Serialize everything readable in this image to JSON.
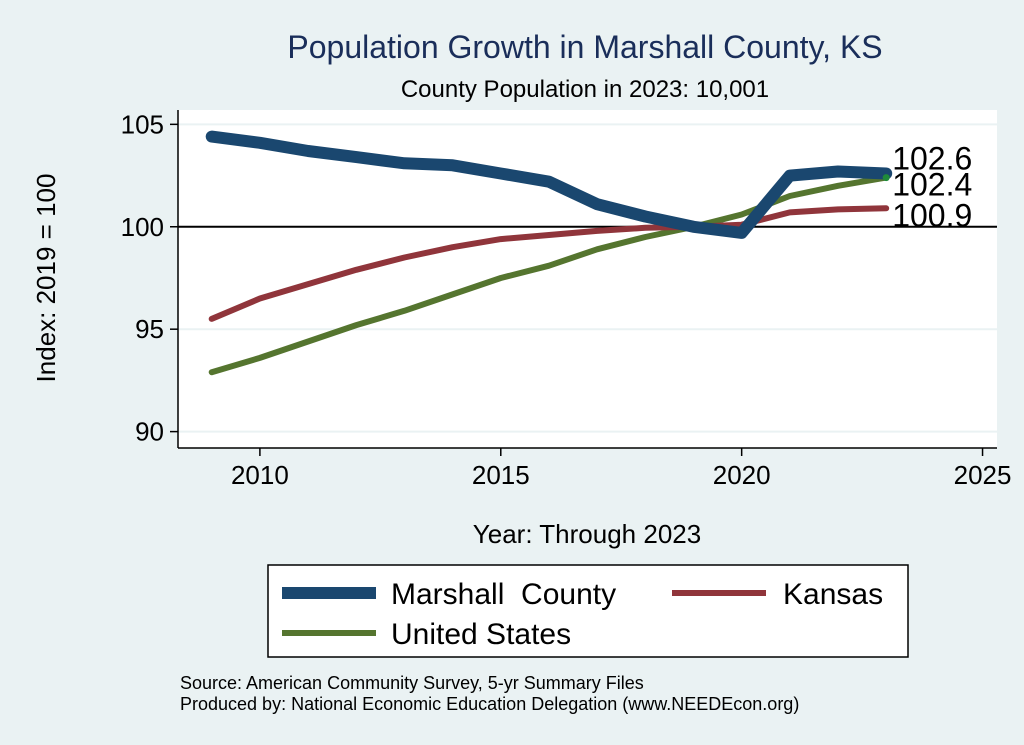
{
  "chart_data": {
    "type": "line",
    "title": "Population Growth in Marshall County, KS",
    "subtitle": "County Population in 2023: 10,001",
    "xlabel": "Year: Through 2023",
    "ylabel": "Index: 2019 = 100",
    "xlim": [
      2008.3,
      2025.3
    ],
    "ylim": [
      89.2,
      105.7
    ],
    "xticks": [
      2010,
      2015,
      2020,
      2025
    ],
    "yticks": [
      90,
      95,
      100,
      105
    ],
    "reference_line": 100,
    "grid": true,
    "legend_position": "bottom",
    "x": [
      2009,
      2010,
      2011,
      2012,
      2013,
      2014,
      2015,
      2016,
      2017,
      2018,
      2019,
      2020,
      2021,
      2022,
      2023
    ],
    "series": [
      {
        "name": "Marshall  County",
        "color": "#1a476f",
        "values": [
          104.4,
          104.1,
          103.7,
          103.4,
          103.1,
          103.0,
          102.6,
          102.2,
          101.1,
          100.5,
          100.0,
          99.7,
          102.5,
          102.7,
          102.6
        ],
        "end_label": "102.6"
      },
      {
        "name": "Kansas",
        "color": "#90353b",
        "values": [
          95.5,
          96.5,
          97.2,
          97.9,
          98.5,
          99.0,
          99.4,
          99.6,
          99.8,
          99.95,
          100.0,
          100.1,
          100.7,
          100.85,
          100.9
        ],
        "end_label": "100.9"
      },
      {
        "name": "United States",
        "color": "#55752f",
        "values": [
          92.9,
          93.6,
          94.4,
          95.2,
          95.9,
          96.7,
          97.5,
          98.1,
          98.9,
          99.5,
          100.0,
          100.6,
          101.5,
          102.0,
          102.4
        ],
        "end_label": "102.4"
      }
    ]
  },
  "notes": {
    "source": "Source: American Community Survey, 5-yr Summary Files",
    "produced_by": "Produced by: National Economic Education Delegation (www.NEEDEcon.org)"
  }
}
